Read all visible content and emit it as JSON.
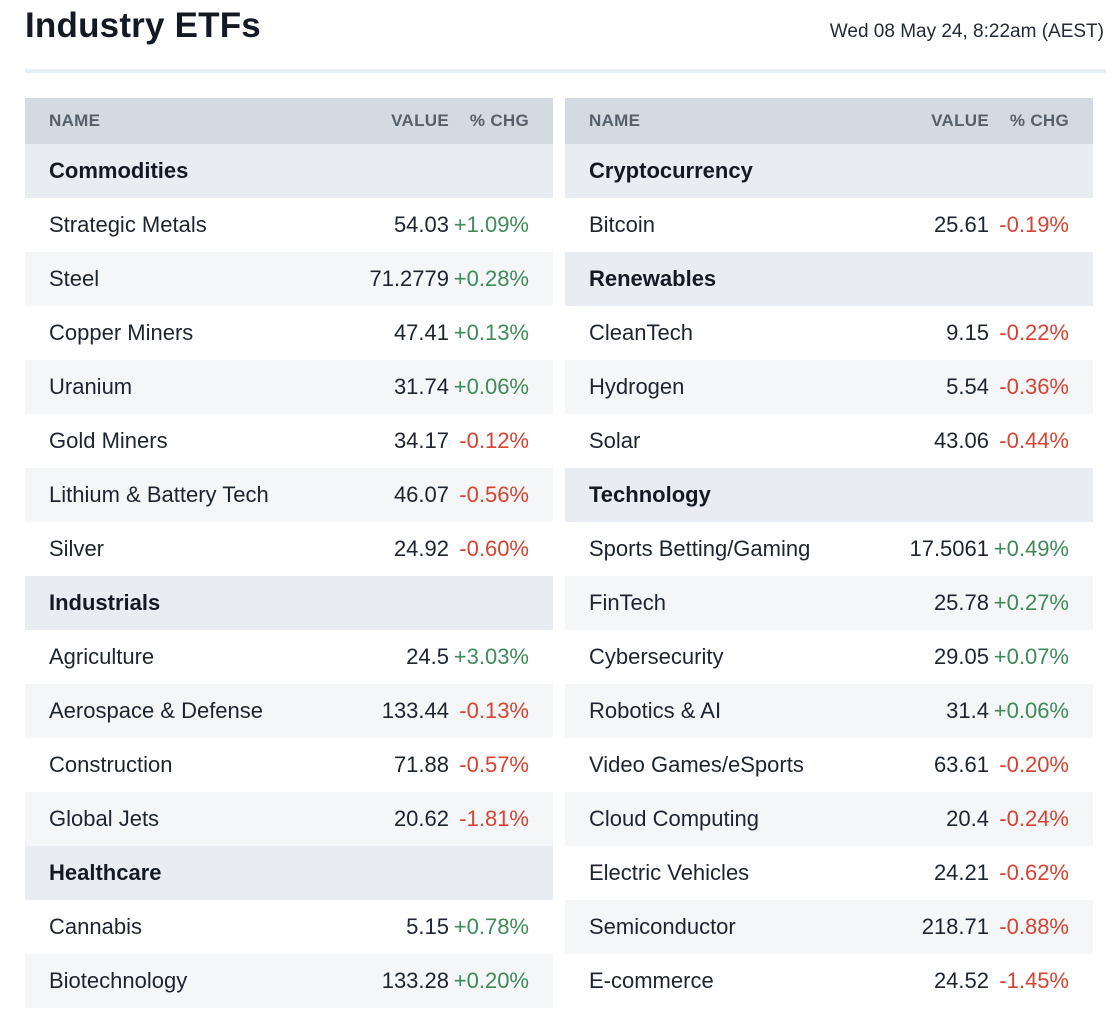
{
  "page": {
    "title": "Industry ETFs",
    "timestamp": "Wed 08 May 24, 8:22am (AEST)"
  },
  "columns": {
    "name": "NAME",
    "value": "VALUE",
    "chg": "% CHG"
  },
  "colors": {
    "positive": "#3f8a5a",
    "negative": "#d64332",
    "header_bg": "#d4dae1",
    "category_bg": "#e9edf1"
  },
  "left_table": {
    "rows": [
      {
        "type": "category",
        "name": "Commodities"
      },
      {
        "type": "item",
        "name": "Strategic Metals",
        "value": "54.03",
        "chg": "+1.09%"
      },
      {
        "type": "item",
        "name": "Steel",
        "value": "71.2779",
        "chg": "+0.28%"
      },
      {
        "type": "item",
        "name": "Copper Miners",
        "value": "47.41",
        "chg": "+0.13%"
      },
      {
        "type": "item",
        "name": "Uranium",
        "value": "31.74",
        "chg": "+0.06%"
      },
      {
        "type": "item",
        "name": "Gold Miners",
        "value": "34.17",
        "chg": "-0.12%"
      },
      {
        "type": "item",
        "name": "Lithium & Battery Tech",
        "value": "46.07",
        "chg": "-0.56%"
      },
      {
        "type": "item",
        "name": "Silver",
        "value": "24.92",
        "chg": "-0.60%"
      },
      {
        "type": "category",
        "name": "Industrials"
      },
      {
        "type": "item",
        "name": "Agriculture",
        "value": "24.5",
        "chg": "+3.03%"
      },
      {
        "type": "item",
        "name": "Aerospace & Defense",
        "value": "133.44",
        "chg": "-0.13%"
      },
      {
        "type": "item",
        "name": "Construction",
        "value": "71.88",
        "chg": "-0.57%"
      },
      {
        "type": "item",
        "name": "Global Jets",
        "value": "20.62",
        "chg": "-1.81%"
      },
      {
        "type": "category",
        "name": "Healthcare"
      },
      {
        "type": "item",
        "name": "Cannabis",
        "value": "5.15",
        "chg": "+0.78%"
      },
      {
        "type": "item",
        "name": "Biotechnology",
        "value": "133.28",
        "chg": "+0.20%"
      }
    ]
  },
  "right_table": {
    "rows": [
      {
        "type": "category",
        "name": "Cryptocurrency"
      },
      {
        "type": "item",
        "name": "Bitcoin",
        "value": "25.61",
        "chg": "-0.19%"
      },
      {
        "type": "category",
        "name": "Renewables"
      },
      {
        "type": "item",
        "name": "CleanTech",
        "value": "9.15",
        "chg": "-0.22%"
      },
      {
        "type": "item",
        "name": "Hydrogen",
        "value": "5.54",
        "chg": "-0.36%"
      },
      {
        "type": "item",
        "name": "Solar",
        "value": "43.06",
        "chg": "-0.44%"
      },
      {
        "type": "category",
        "name": "Technology"
      },
      {
        "type": "item",
        "name": "Sports Betting/Gaming",
        "value": "17.5061",
        "chg": "+0.49%"
      },
      {
        "type": "item",
        "name": "FinTech",
        "value": "25.78",
        "chg": "+0.27%"
      },
      {
        "type": "item",
        "name": "Cybersecurity",
        "value": "29.05",
        "chg": "+0.07%"
      },
      {
        "type": "item",
        "name": "Robotics & AI",
        "value": "31.4",
        "chg": "+0.06%"
      },
      {
        "type": "item",
        "name": "Video Games/eSports",
        "value": "63.61",
        "chg": "-0.20%"
      },
      {
        "type": "item",
        "name": "Cloud Computing",
        "value": "20.4",
        "chg": "-0.24%"
      },
      {
        "type": "item",
        "name": "Electric Vehicles",
        "value": "24.21",
        "chg": "-0.62%"
      },
      {
        "type": "item",
        "name": "Semiconductor",
        "value": "218.71",
        "chg": "-0.88%"
      },
      {
        "type": "item",
        "name": "E-commerce",
        "value": "24.52",
        "chg": "-1.45%"
      }
    ]
  }
}
